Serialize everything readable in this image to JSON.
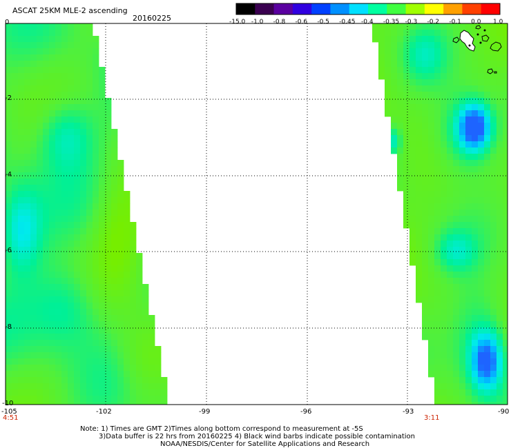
{
  "header": {
    "title": "ASCAT 25KM MLE-2 ascending",
    "date": "20160225"
  },
  "colorbar": {
    "labels": [
      "-15.0",
      "-1.0",
      "-0.8",
      "-0.6",
      "-0.5",
      "-0.45",
      "-0.4",
      "-0.35",
      "-0.3",
      "-0.2",
      "-0.1",
      "0.0",
      "1.0"
    ],
    "colors": [
      "#000000",
      "#3a0050",
      "#5a00a0",
      "#3000e0",
      "#0040ff",
      "#0090ff",
      "#00e0ff",
      "#00ffa0",
      "#40ff40",
      "#a0ff00",
      "#ffff00",
      "#ffa000",
      "#ff4000",
      "#ff0000"
    ]
  },
  "map": {
    "lat_labels": [
      "0",
      "-2",
      "-4",
      "-6",
      "-8",
      "-10"
    ],
    "lon_labels": [
      "-105",
      "-102",
      "-99",
      "-96",
      "-93",
      "-90"
    ],
    "time_left": "4:51",
    "time_right": "3:11"
  },
  "notes": [
    "Note: 1) Times are GMT 2)Times along bottom correspond to measurement at -5S",
    "3)Data buffer is 22 hrs from 20160225 4) Black wind barbs indicate possible contamination",
    "NOAA/NESDIS/Center for Satellite Applications and Research"
  ]
}
